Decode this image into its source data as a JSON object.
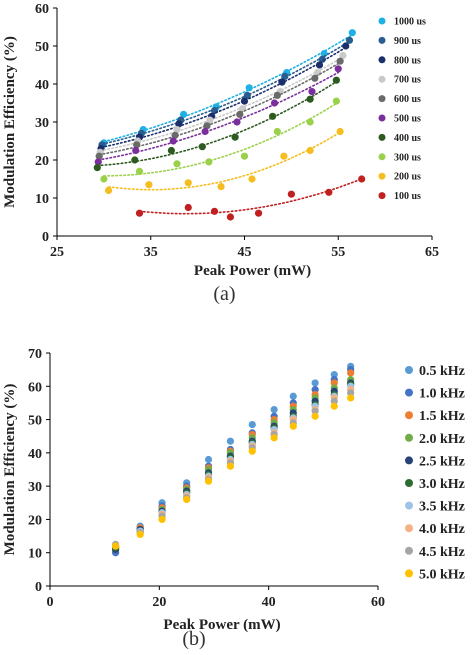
{
  "chart_data": [
    {
      "type": "scatter",
      "panel_label": "(a)",
      "xlabel": "Peak Power (mW)",
      "ylabel": "Modulation Efficiency (%)",
      "xlim": [
        25,
        65
      ],
      "ylim": [
        0,
        60
      ],
      "xticks": [
        25,
        35,
        45,
        55,
        65
      ],
      "yticks": [
        0,
        10,
        20,
        30,
        40,
        50,
        60
      ],
      "grid": false,
      "legend": "right",
      "trendlines": "dotted",
      "series": [
        {
          "name": "1000 us",
          "color": "#1fb0e6",
          "x": [
            30.0,
            34.2,
            38.5,
            42.0,
            45.5,
            49.5,
            53.5,
            56.5
          ],
          "y": [
            24.5,
            28.0,
            32.0,
            34.0,
            39.0,
            43.0,
            48.0,
            53.5
          ]
        },
        {
          "name": "900 us",
          "color": "#2a5d8f",
          "x": [
            29.8,
            34.0,
            38.2,
            41.8,
            45.3,
            49.3,
            53.3,
            56.2
          ],
          "y": [
            24.0,
            27.0,
            30.5,
            33.0,
            37.0,
            42.0,
            46.5,
            51.5
          ]
        },
        {
          "name": "800 us",
          "color": "#1a2f6b",
          "x": [
            29.7,
            33.8,
            38.0,
            41.5,
            45.0,
            49.0,
            53.0,
            55.8
          ],
          "y": [
            23.0,
            26.0,
            29.5,
            31.5,
            35.5,
            40.5,
            45.0,
            50.0
          ]
        },
        {
          "name": "700 us",
          "color": "#c9c9c9",
          "x": [
            29.6,
            33.6,
            37.8,
            41.3,
            44.8,
            48.8,
            52.8,
            55.5
          ],
          "y": [
            22.0,
            25.0,
            28.0,
            30.5,
            33.5,
            38.0,
            43.0,
            47.5
          ]
        },
        {
          "name": "600 us",
          "color": "#6a6a6a",
          "x": [
            29.5,
            33.5,
            37.6,
            41.0,
            44.5,
            48.5,
            52.5,
            55.2
          ],
          "y": [
            21.0,
            24.0,
            26.5,
            29.0,
            32.0,
            37.0,
            41.5,
            46.0
          ]
        },
        {
          "name": "500 us",
          "color": "#7b2f9c",
          "x": [
            29.4,
            33.4,
            37.4,
            40.8,
            44.2,
            48.2,
            52.2,
            55.0
          ],
          "y": [
            19.5,
            22.5,
            25.0,
            27.5,
            30.0,
            35.0,
            38.0,
            44.0
          ]
        },
        {
          "name": "400 us",
          "color": "#2d5a1e",
          "x": [
            29.3,
            33.3,
            37.2,
            40.5,
            44.0,
            48.0,
            52.0,
            54.8
          ],
          "y": [
            18.0,
            20.0,
            22.5,
            23.5,
            26.0,
            31.5,
            36.0,
            41.0
          ]
        },
        {
          "name": "300 us",
          "color": "#9bd14a",
          "x": [
            30.0,
            33.8,
            37.8,
            41.2,
            45.0,
            48.5,
            52.0,
            54.8
          ],
          "y": [
            15.0,
            17.0,
            19.0,
            19.5,
            21.0,
            27.5,
            30.0,
            35.5
          ]
        },
        {
          "name": "200 us",
          "color": "#f5bd1f",
          "x": [
            30.5,
            34.8,
            39.0,
            42.5,
            45.8,
            49.2,
            52.0,
            55.2
          ],
          "y": [
            12.0,
            13.5,
            14.0,
            13.0,
            15.0,
            21.0,
            22.5,
            27.5
          ]
        },
        {
          "name": "100 us",
          "color": "#c02020",
          "x": [
            33.8,
            39.0,
            41.8,
            43.5,
            46.5,
            50.0,
            54.0,
            57.5
          ],
          "y": [
            6.0,
            7.5,
            6.5,
            5.0,
            6.0,
            11.0,
            11.5,
            15.0
          ]
        }
      ]
    },
    {
      "type": "scatter",
      "panel_label": "(b)",
      "xlabel": "Peak Power (mW)",
      "ylabel": "Modulation Efficiency (%)",
      "xlim": [
        0,
        60
      ],
      "ylim": [
        0,
        70
      ],
      "xticks": [
        0,
        20,
        40,
        60
      ],
      "yticks": [
        0,
        10,
        20,
        30,
        40,
        50,
        60,
        70
      ],
      "grid": false,
      "legend": "right",
      "x": [
        12,
        16.5,
        20.5,
        25,
        29,
        33,
        37,
        41,
        44.5,
        48.5,
        52,
        55
      ],
      "series": [
        {
          "name": "0.5 kHz",
          "color": "#5b9bd5",
          "y": [
            12.0,
            18.0,
            25.0,
            31.0,
            38.0,
            43.5,
            48.5,
            53.0,
            57.0,
            61.0,
            63.5,
            66.0
          ]
        },
        {
          "name": "1.0 kHz",
          "color": "#4472c4",
          "y": [
            10.0,
            17.5,
            24.0,
            30.0,
            36.0,
            41.0,
            46.0,
            51.0,
            55.0,
            59.0,
            62.0,
            65.0
          ]
        },
        {
          "name": "1.5 kHz",
          "color": "#ed7d31",
          "y": [
            11.0,
            17.5,
            23.5,
            29.5,
            35.5,
            40.5,
            45.5,
            50.0,
            54.0,
            57.5,
            61.0,
            64.0
          ]
        },
        {
          "name": "2.0 kHz",
          "color": "#70ad47",
          "y": [
            11.5,
            17.0,
            23.0,
            29.0,
            35.0,
            40.0,
            44.5,
            49.0,
            53.0,
            56.5,
            59.5,
            62.0
          ]
        },
        {
          "name": "2.5 kHz",
          "color": "#264478",
          "y": [
            11.0,
            17.0,
            22.5,
            28.5,
            34.0,
            39.0,
            43.5,
            48.0,
            52.0,
            55.5,
            58.5,
            61.0
          ]
        },
        {
          "name": "3.0 kHz",
          "color": "#2e6b30",
          "y": [
            11.5,
            16.5,
            22.0,
            28.0,
            33.5,
            38.5,
            43.0,
            47.5,
            51.0,
            54.5,
            57.5,
            60.5
          ]
        },
        {
          "name": "3.5 kHz",
          "color": "#9dc3e6",
          "y": [
            12.0,
            16.5,
            22.0,
            27.5,
            33.0,
            38.0,
            42.5,
            47.0,
            50.5,
            54.0,
            57.0,
            60.0
          ]
        },
        {
          "name": "4.0 kHz",
          "color": "#f4b183",
          "y": [
            12.0,
            16.0,
            21.5,
            27.0,
            32.5,
            37.5,
            42.0,
            46.0,
            50.0,
            53.0,
            56.5,
            59.0
          ]
        },
        {
          "name": "4.5 kHz",
          "color": "#a5a5a5",
          "y": [
            12.5,
            16.0,
            21.0,
            26.5,
            32.0,
            37.0,
            41.5,
            45.5,
            49.0,
            52.5,
            55.5,
            58.0
          ]
        },
        {
          "name": "5.0 kHz",
          "color": "#ffc000",
          "y": [
            12.0,
            15.5,
            20.0,
            26.0,
            31.5,
            36.0,
            40.5,
            44.5,
            48.0,
            51.0,
            54.0,
            56.5
          ]
        }
      ]
    }
  ]
}
